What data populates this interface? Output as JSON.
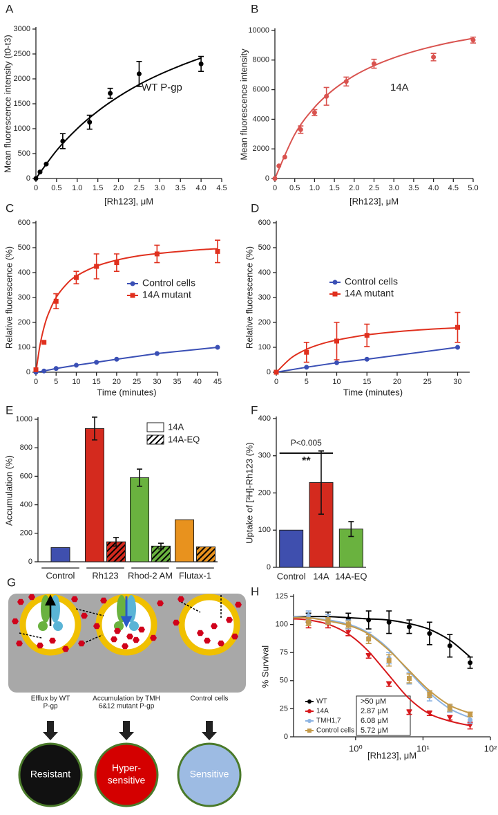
{
  "chart_data": [
    {
      "panel": "A",
      "type": "scatter",
      "xlabel": "[Rh123], μM",
      "ylabel": "Mean fluorescence intensity (t0-t3)",
      "annotation": "WT P-gp",
      "color": "#000000",
      "x": [
        0,
        0.1,
        0.25,
        0.65,
        1.3,
        1.8,
        2.5,
        4
      ],
      "values": [
        0,
        130,
        290,
        750,
        1130,
        1710,
        2100,
        2300
      ],
      "errors": [
        null,
        null,
        null,
        150,
        140,
        100,
        250,
        150
      ],
      "curve": {
        "x": [
          0,
          0.5,
          1,
          1.5,
          2,
          2.5,
          3,
          3.5,
          4
        ],
        "values": [
          0,
          561,
          1000,
          1352,
          1642,
          1886,
          2090,
          2265,
          2420
        ]
      },
      "xlim": [
        0,
        4.5
      ],
      "xticks": [
        0,
        0.5,
        {
          "value": 1,
          "label": "1.0"
        },
        1.5,
        {
          "value": 2,
          "label": "2.0"
        },
        2.5,
        {
          "value": 3,
          "label": "3.0"
        },
        3.5,
        {
          "value": 4,
          "label": "4.0"
        },
        4.5
      ],
      "ylim": [
        0,
        3000
      ],
      "yticks": [
        0,
        500,
        1000,
        1500,
        2000,
        2500,
        3000
      ]
    },
    {
      "panel": "B",
      "type": "scatter",
      "xlabel": "[Rh123], μM",
      "ylabel": "Mean fluorescence intensity",
      "annotation": "14A",
      "color": "#d9534f",
      "x": [
        0,
        0.1,
        0.25,
        0.65,
        1,
        1.3,
        1.8,
        2.5,
        4,
        5
      ],
      "values": [
        0,
        850,
        1450,
        3300,
        4450,
        5550,
        6550,
        7750,
        8200,
        9350
      ],
      "errors": [
        null,
        null,
        null,
        250,
        200,
        600,
        300,
        300,
        250,
        200
      ],
      "curve": {
        "x": [
          0,
          0.5,
          1,
          1.5,
          2,
          2.5,
          3,
          3.5,
          4,
          4.5,
          5
        ],
        "values": [
          0,
          2976,
          4808,
          6048,
          6944,
          7622,
          8152,
          8578,
          8929,
          9222,
          9470
        ]
      },
      "xlim": [
        0,
        5
      ],
      "xticks": [
        0,
        0.5,
        {
          "value": 1,
          "label": "1.0"
        },
        1.5,
        {
          "value": 2,
          "label": "2.0"
        },
        2.5,
        {
          "value": 3,
          "label": "3.0"
        },
        3.5,
        {
          "value": 4,
          "label": "4.0"
        },
        4.5,
        {
          "value": 5,
          "label": "5.0"
        }
      ],
      "ylim": [
        0,
        10000
      ],
      "yticks": [
        0,
        2000,
        4000,
        6000,
        8000,
        10000
      ]
    },
    {
      "panel": "C",
      "type": "line",
      "xlabel": "Time (minutes)",
      "ylabel": "Relative fluorescence (%)",
      "x": [
        0,
        2,
        5,
        10,
        15,
        20,
        30,
        45
      ],
      "series": [
        {
          "name": "Control cells",
          "color": "#3a4fb5",
          "marker": "circle",
          "values": [
            0,
            5,
            15,
            28,
            40,
            52,
            75,
            100
          ]
        },
        {
          "name": "14A mutant",
          "color": "#e0301e",
          "marker": "square",
          "values": [
            10,
            120,
            285,
            380,
            425,
            440,
            475,
            485
          ],
          "errors": [
            null,
            null,
            30,
            25,
            50,
            35,
            35,
            45
          ],
          "curve": {
            "x": [
              0,
              1,
              2,
              3,
              5,
              7.5,
              10,
              15,
              20,
              25,
              30,
              35,
              40,
              45
            ],
            "values": [
              0,
              108,
              180,
              231,
              300,
              352,
              386,
              426,
              450,
              466,
              476,
              484,
              491,
              496
            ]
          }
        }
      ],
      "xlim": [
        0,
        45
      ],
      "xticks": [
        0,
        5,
        10,
        15,
        20,
        25,
        30,
        35,
        40,
        45
      ],
      "ylim": [
        0,
        600
      ],
      "yticks": [
        0,
        100,
        200,
        300,
        400,
        500,
        600
      ]
    },
    {
      "panel": "D",
      "type": "line",
      "xlabel": "Time (minutes)",
      "ylabel": "Relative fluorescence (%)",
      "x": [
        0,
        5,
        10,
        15,
        30
      ],
      "series": [
        {
          "name": "Control cells",
          "color": "#3a4fb5",
          "marker": "circle",
          "values": [
            0,
            20,
            38,
            52,
            100
          ]
        },
        {
          "name": "14A mutant",
          "color": "#e0301e",
          "marker": "square",
          "values": [
            0,
            80,
            125,
            148,
            180
          ],
          "errors": [
            null,
            40,
            75,
            45,
            60
          ],
          "curve": {
            "x": [
              0,
              2.5,
              5,
              7.5,
              10,
              15,
              20,
              25,
              30
            ],
            "values": [
              0,
              58,
              92,
              114,
              129,
              150,
              163,
              172,
              178
            ]
          }
        }
      ],
      "xlim": [
        0,
        32
      ],
      "xticks": [
        0,
        5,
        10,
        15,
        20,
        25,
        30
      ],
      "ylim": [
        0,
        600
      ],
      "yticks": [
        0,
        100,
        200,
        300,
        400,
        500,
        600
      ]
    },
    {
      "panel": "E",
      "type": "bar",
      "ylabel": "Accumulation (%)",
      "categories": [
        "Control",
        "Rh123",
        "Rhod-2 AM",
        "Flutax-1"
      ],
      "colors": [
        "#3f4fae",
        "#d42a1e",
        "#6ab23f",
        "#e8921e"
      ],
      "series": [
        {
          "name": "14A",
          "hatch": false,
          "values": [
            100,
            935,
            590,
            295
          ],
          "errors": [
            null,
            80,
            60,
            null
          ]
        },
        {
          "name": "14A-EQ",
          "hatch": true,
          "values": [
            null,
            140,
            110,
            105
          ],
          "errors": [
            null,
            30,
            20,
            null
          ]
        }
      ],
      "ylim": [
        0,
        1000
      ],
      "yticks": [
        0,
        200,
        400,
        600,
        800,
        1000
      ]
    },
    {
      "panel": "F",
      "type": "bar",
      "ylabel": "Uptake of [³H]-Rh123 (%)",
      "categories": [
        "Control",
        "14A",
        "14A-EQ"
      ],
      "colors": [
        "#3f4fae",
        "#d42a1e",
        "#6ab23f"
      ],
      "values": [
        100,
        228,
        103
      ],
      "errors": [
        null,
        85,
        20
      ],
      "annotations": [
        "P<0.005",
        "**"
      ],
      "ylim": [
        0,
        400
      ],
      "yticks": [
        0,
        100,
        200,
        300,
        400
      ]
    },
    {
      "panel": "H",
      "type": "line",
      "log_x": true,
      "xlabel": "[Rh123], μM",
      "ylabel": "% Survival",
      "x": [
        0.2,
        0.39,
        0.78,
        1.56,
        3.13,
        6.25,
        12.5,
        25,
        50
      ],
      "series": [
        {
          "name": "WT",
          "ic50": ">50 μM",
          "color": "#000000",
          "marker": "circle",
          "values": [
            106,
            106,
            105,
            104,
            102,
            98,
            92,
            81,
            66
          ],
          "errors": [
            4,
            5,
            5,
            8,
            10,
            6,
            10,
            10,
            5
          ],
          "curve": {
            "x": [
              0.12,
              0.2,
              0.4,
              0.8,
              1.5,
              3,
              6,
              12,
              25,
              50
            ],
            "values": [
              107,
              107,
              107,
              106,
              105,
              104,
              101,
              96,
              86,
              71
            ]
          }
        },
        {
          "name": "14A",
          "ic50": "2.87 μM",
          "color": "#d7191c",
          "marker": "triangle",
          "values": [
            101,
            100,
            93,
            72,
            47,
            22,
            21,
            17,
            10
          ],
          "errors": [
            4,
            3,
            3,
            2,
            2,
            2,
            2,
            2,
            3
          ],
          "curve": {
            "x": [
              0.12,
              0.2,
              0.4,
              0.8,
              1.5,
              3,
              6,
              12,
              25,
              50
            ],
            "values": [
              105,
              104,
              100,
              91,
              77,
              56,
              35,
              21,
              14,
              10
            ]
          }
        },
        {
          "name": "TMH1,7",
          "ic50": "6.08 μM",
          "color": "#8db4e2",
          "marker": "circle",
          "values": [
            108,
            105,
            100,
            88,
            70,
            52,
            36,
            25,
            15
          ],
          "errors": [
            4,
            4,
            4,
            5,
            5,
            5,
            4,
            3,
            3
          ],
          "curve": {
            "x": [
              0.12,
              0.2,
              0.4,
              0.8,
              1.5,
              3,
              6,
              12,
              25,
              50
            ],
            "values": [
              107,
              106,
              104,
              100,
              93,
              79,
              59,
              40,
              25,
              17
            ]
          }
        },
        {
          "name": "Control cells",
          "ic50": "5.72 μM",
          "color": "#c49a4a",
          "marker": "square",
          "values": [
            102,
            103,
            100,
            87,
            68,
            52,
            38,
            26,
            20
          ],
          "errors": [
            3,
            3,
            3,
            4,
            5,
            4,
            3,
            3,
            2
          ],
          "curve": {
            "x": [
              0.12,
              0.2,
              0.4,
              0.8,
              1.5,
              3,
              6,
              12,
              25,
              50
            ],
            "values": [
              106,
              106,
              103,
              99,
              92,
              78,
              60,
              42,
              28,
              21
            ]
          }
        }
      ],
      "xlim": [
        0.12,
        100
      ],
      "xticks": [
        {
          "value": 1,
          "label": "10⁰"
        },
        {
          "value": 10,
          "label": "10¹"
        },
        {
          "value": 100,
          "label": "10²"
        }
      ],
      "ylim": [
        0,
        125
      ],
      "yticks": [
        0,
        25,
        50,
        75,
        100,
        125
      ]
    }
  ],
  "diagram": {
    "panel": "G",
    "captions": [
      [
        "Efflux by WT",
        "P-gp"
      ],
      [
        "Accumulation by TMH",
        "6&12 mutant P-gp"
      ],
      [
        "Control cells"
      ]
    ],
    "outcomes": [
      [
        "Resistant"
      ],
      [
        "Hyper-",
        "sensitive"
      ],
      [
        "Sensitive"
      ]
    ]
  }
}
